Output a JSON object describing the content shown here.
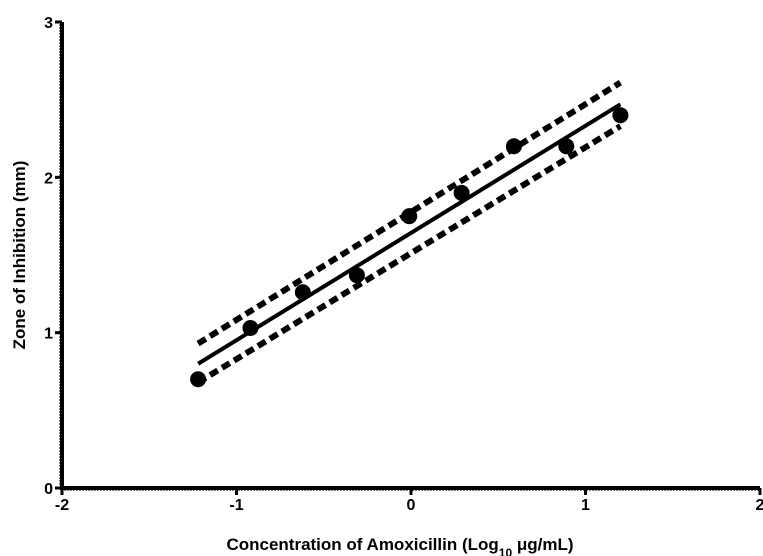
{
  "chart_data": {
    "type": "scatter",
    "xlabel": {
      "prefix": "Concentration of Amoxicillin (Log",
      "subscript": "10",
      "suffix": " μg/mL)"
    },
    "ylabel": "Zone of Inhibition (mm)",
    "xlim": [
      -2,
      2
    ],
    "ylim": [
      0,
      3
    ],
    "x_ticks": [
      -2,
      -1,
      0,
      1,
      2
    ],
    "y_ticks": [
      0,
      1,
      2,
      3
    ],
    "x_tick_labels": [
      "-2",
      "-1",
      "0",
      "1",
      "2"
    ],
    "y_tick_labels": [
      "0",
      "1",
      "2",
      "3"
    ],
    "grid": false,
    "series": [
      {
        "kind": "points",
        "x": [
          -1.22,
          -0.92,
          -0.62,
          -0.31,
          -0.01,
          0.29,
          0.59,
          0.89,
          1.2
        ],
        "y": [
          0.7,
          1.03,
          1.26,
          1.37,
          1.75,
          1.9,
          2.2,
          2.2,
          2.4
        ],
        "color": "#000000"
      },
      {
        "kind": "fit-line",
        "x": [
          -1.22,
          1.2
        ],
        "y": [
          0.8,
          2.47
        ],
        "color": "#000000"
      },
      {
        "kind": "upper-band",
        "x": [
          -1.22,
          1.2
        ],
        "y": [
          0.93,
          2.61
        ],
        "color": "#000000"
      },
      {
        "kind": "lower-band",
        "x": [
          -1.22,
          1.2
        ],
        "y": [
          0.68,
          2.33
        ],
        "color": "#000000"
      }
    ]
  }
}
